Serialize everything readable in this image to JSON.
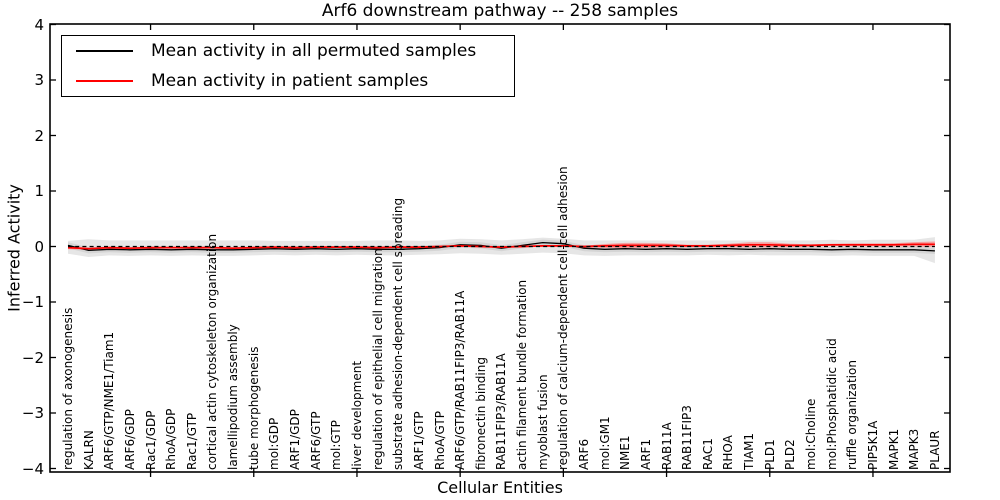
{
  "title": "Arf6 downstream pathway -- 258 samples",
  "legend": {
    "items": [
      {
        "label": "Mean activity in all permuted samples",
        "color": "#000000"
      },
      {
        "label": "Mean activity in patient samples",
        "color": "#ff0000"
      }
    ]
  },
  "axes": {
    "ylabel": "Inferred Activity",
    "xlabel": "Cellular Entities",
    "ytick_labels": [
      "4",
      "3",
      "2",
      "1",
      "0",
      "−1",
      "−2",
      "−3",
      "−4"
    ]
  },
  "chart_data": {
    "type": "line",
    "title": "Arf6 downstream pathway -- 258 samples",
    "xlabel": "Cellular Entities",
    "ylabel": "Inferred Activity",
    "ylim": [
      -4,
      4
    ],
    "yticks": [
      4,
      3,
      2,
      1,
      0,
      -1,
      -2,
      -3,
      -4
    ],
    "xtick_major_every": 5,
    "grid": false,
    "legend_position": "upper left",
    "zero_line": {
      "y": 0,
      "style": "dashed",
      "color": "#000000"
    },
    "categories": [
      "regulation of axonogenesis",
      "KALRN",
      "ARF6/GTP/NME1/Tiam1",
      "ARF6/GDP",
      "Rac1/GDP",
      "RhoA/GDP",
      "Rac1/GTP",
      "cortical actin cytoskeleton organization",
      "lamellipodium assembly",
      "tube morphogenesis",
      "mol:GDP",
      "ARF1/GDP",
      "ARF6/GTP",
      "mol:GTP",
      "liver development",
      "regulation of epithelial cell migration",
      "substrate adhesion-dependent cell spreading",
      "ARF1/GTP",
      "RhoA/GTP",
      "ARF6/GTP/RAB11FIP3/RAB11A",
      "fibronectin binding",
      "RAB11FIP3/RAB11A",
      "actin filament bundle formation",
      "myoblast fusion",
      "regulation of calcium-dependent cell-cell adhesion",
      "ARF6",
      "mol:GM1",
      "NME1",
      "ARF1",
      "RAB11A",
      "RAB11FIP3",
      "RAC1",
      "RHOA",
      "TIAM1",
      "PLD1",
      "PLD2",
      "mol:Choline",
      "mol:Phosphatidic acid",
      "ruffle organization",
      "PIP5K1A",
      "MAPK1",
      "MAPK3",
      "PLAUR"
    ],
    "series": [
      {
        "name": "Mean activity in all permuted samples",
        "color": "#000000",
        "values": [
          0.02,
          -0.07,
          -0.05,
          -0.06,
          -0.05,
          -0.06,
          -0.05,
          -0.06,
          -0.06,
          -0.05,
          -0.04,
          -0.05,
          -0.04,
          -0.05,
          -0.04,
          -0.05,
          -0.05,
          -0.04,
          -0.02,
          0.03,
          0.02,
          -0.03,
          0.02,
          0.07,
          0.05,
          -0.03,
          -0.05,
          -0.04,
          -0.05,
          -0.04,
          -0.05,
          -0.04,
          -0.04,
          -0.05,
          -0.04,
          -0.05,
          -0.05,
          -0.06,
          -0.05,
          -0.06,
          -0.06,
          -0.06,
          -0.08
        ]
      },
      {
        "name": "Mean activity in patient samples",
        "color": "#ff0000",
        "values": [
          -0.02,
          -0.04,
          -0.02,
          -0.03,
          -0.02,
          -0.02,
          -0.02,
          -0.02,
          -0.03,
          -0.02,
          -0.01,
          -0.02,
          -0.01,
          -0.01,
          -0.01,
          -0.02,
          -0.01,
          -0.01,
          0.0,
          0.01,
          0.0,
          -0.01,
          0.0,
          0.01,
          0.01,
          0.0,
          0.01,
          0.02,
          0.02,
          0.02,
          0.01,
          0.01,
          0.02,
          0.03,
          0.03,
          0.02,
          0.02,
          0.03,
          0.03,
          0.03,
          0.03,
          0.04,
          0.04
        ]
      }
    ],
    "bands": {
      "outer_color": "#e6e6e6",
      "outer_hi": [
        0.1,
        0.13,
        0.11,
        0.11,
        0.11,
        0.11,
        0.11,
        0.11,
        0.11,
        0.11,
        0.1,
        0.1,
        0.1,
        0.1,
        0.1,
        0.11,
        0.11,
        0.1,
        0.11,
        0.14,
        0.13,
        0.11,
        0.13,
        0.16,
        0.14,
        0.11,
        0.11,
        0.11,
        0.11,
        0.11,
        0.11,
        0.11,
        0.11,
        0.11,
        0.11,
        0.11,
        0.11,
        0.12,
        0.11,
        0.12,
        0.12,
        0.12,
        0.17
      ],
      "outer_lo": [
        -0.13,
        -0.19,
        -0.16,
        -0.17,
        -0.16,
        -0.17,
        -0.16,
        -0.17,
        -0.17,
        -0.16,
        -0.15,
        -0.16,
        -0.15,
        -0.16,
        -0.15,
        -0.16,
        -0.16,
        -0.15,
        -0.14,
        -0.12,
        -0.13,
        -0.15,
        -0.13,
        -0.11,
        -0.12,
        -0.16,
        -0.17,
        -0.16,
        -0.16,
        -0.16,
        -0.16,
        -0.15,
        -0.16,
        -0.15,
        -0.16,
        -0.16,
        -0.16,
        -0.17,
        -0.16,
        -0.17,
        -0.17,
        -0.17,
        -0.3
      ],
      "inner_color": "#d5d5d5",
      "inner_spread": 0.055,
      "patient_color": "#f49f9f",
      "patient_spread": [
        0.03,
        0.02,
        0.012,
        0.012,
        0.012,
        0.012,
        0.012,
        0.012,
        0.012,
        0.012,
        0.012,
        0.012,
        0.012,
        0.012,
        0.012,
        0.012,
        0.012,
        0.012,
        0.012,
        0.012,
        0.012,
        0.012,
        0.012,
        0.015,
        0.015,
        0.015,
        0.035,
        0.045,
        0.045,
        0.035,
        0.02,
        0.02,
        0.03,
        0.045,
        0.045,
        0.03,
        0.02,
        0.02,
        0.025,
        0.025,
        0.03,
        0.04,
        0.05
      ]
    }
  }
}
